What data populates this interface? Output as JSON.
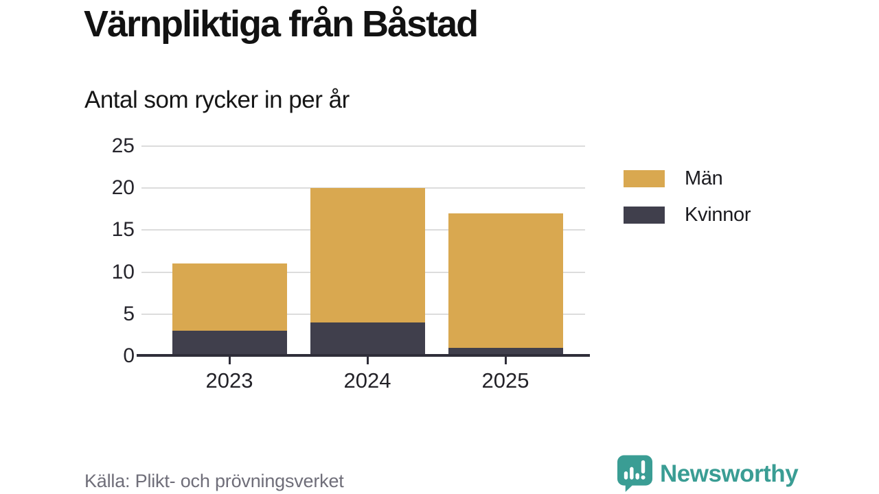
{
  "header": {
    "title": "Värnpliktiga från Båstad",
    "subtitle": "Antal som rycker in per år"
  },
  "chart_data": {
    "type": "bar",
    "stacked": true,
    "title": "Värnpliktiga från Båstad",
    "subtitle": "Antal som rycker in per år",
    "categories": [
      "2023",
      "2024",
      "2025"
    ],
    "series": [
      {
        "name": "Män",
        "color": "#d9a850",
        "values": [
          8,
          16,
          16
        ]
      },
      {
        "name": "Kvinnor",
        "color": "#403f4c",
        "values": [
          3,
          4,
          1
        ]
      }
    ],
    "stacked_totals": [
      11,
      20,
      17
    ],
    "yticks": [
      0,
      5,
      10,
      15,
      20,
      25
    ],
    "ylim": [
      0,
      25
    ],
    "xlabel": "",
    "ylabel": "",
    "grid": true,
    "legend_position": "right"
  },
  "footer": {
    "source": "Källa: Plikt- och prövningsverket",
    "brand": "Newsworthy",
    "logo_icon": "speech-bubble-bar-chart-icon"
  },
  "colors": {
    "men": "#d9a850",
    "women": "#403f4c",
    "axis": "#2f2e39",
    "gridline": "#dcdcdc",
    "source_text": "#6f6e79",
    "brand_teal": "#3a9d94"
  }
}
